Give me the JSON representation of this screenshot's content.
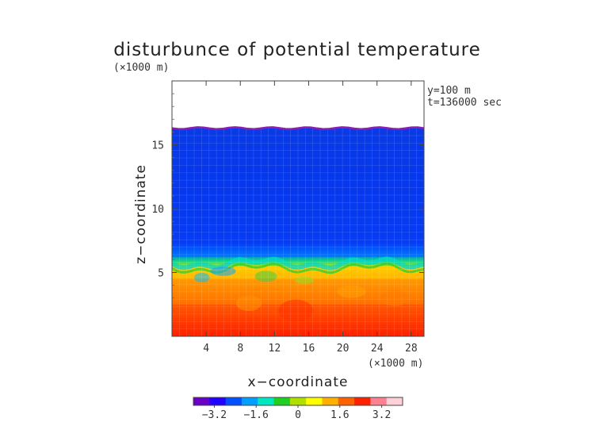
{
  "chart_data": {
    "type": "heatmap",
    "title": "disturbunce of potential temperature",
    "axis_unit_label_y": "(×1000 m)",
    "axis_unit_label_x": "(×1000 m)",
    "xlabel": "x−coordinate",
    "ylabel": "z−coordinate",
    "annotations": [
      "y=100 m",
      "t=136000 sec"
    ],
    "x_ticks": [
      4,
      8,
      12,
      16,
      20,
      24,
      28
    ],
    "y_ticks": [
      5,
      10,
      15
    ],
    "xlim": [
      0,
      29.5
    ],
    "ylim": [
      0,
      20
    ],
    "field_top_z": 16.3,
    "regions": [
      {
        "z_from": 0,
        "z_to": 2.5,
        "value": 2.6
      },
      {
        "z_from": 2.5,
        "z_to": 4.5,
        "value": 1.9
      },
      {
        "z_from": 4.5,
        "z_to": 5.5,
        "value": 1.2
      },
      {
        "z_from": 5.5,
        "z_to": 6.2,
        "value": -0.6
      },
      {
        "z_from": 6.2,
        "z_to": 16.3,
        "value": -3.0
      }
    ],
    "colorbar": {
      "ticks": [
        "−3.2",
        "−1.6",
        "0",
        "1.6",
        "3.2"
      ],
      "tick_values": [
        -3.2,
        -1.6,
        0,
        1.6,
        3.2
      ],
      "range": [
        -4.0,
        4.0
      ],
      "colors": [
        "#6a00c8",
        "#2000ff",
        "#0050ff",
        "#00a0ff",
        "#00e8c0",
        "#20d020",
        "#b0e000",
        "#ffff00",
        "#ffb000",
        "#ff6000",
        "#ff2000",
        "#ff8090",
        "#ffd0d8"
      ]
    }
  }
}
